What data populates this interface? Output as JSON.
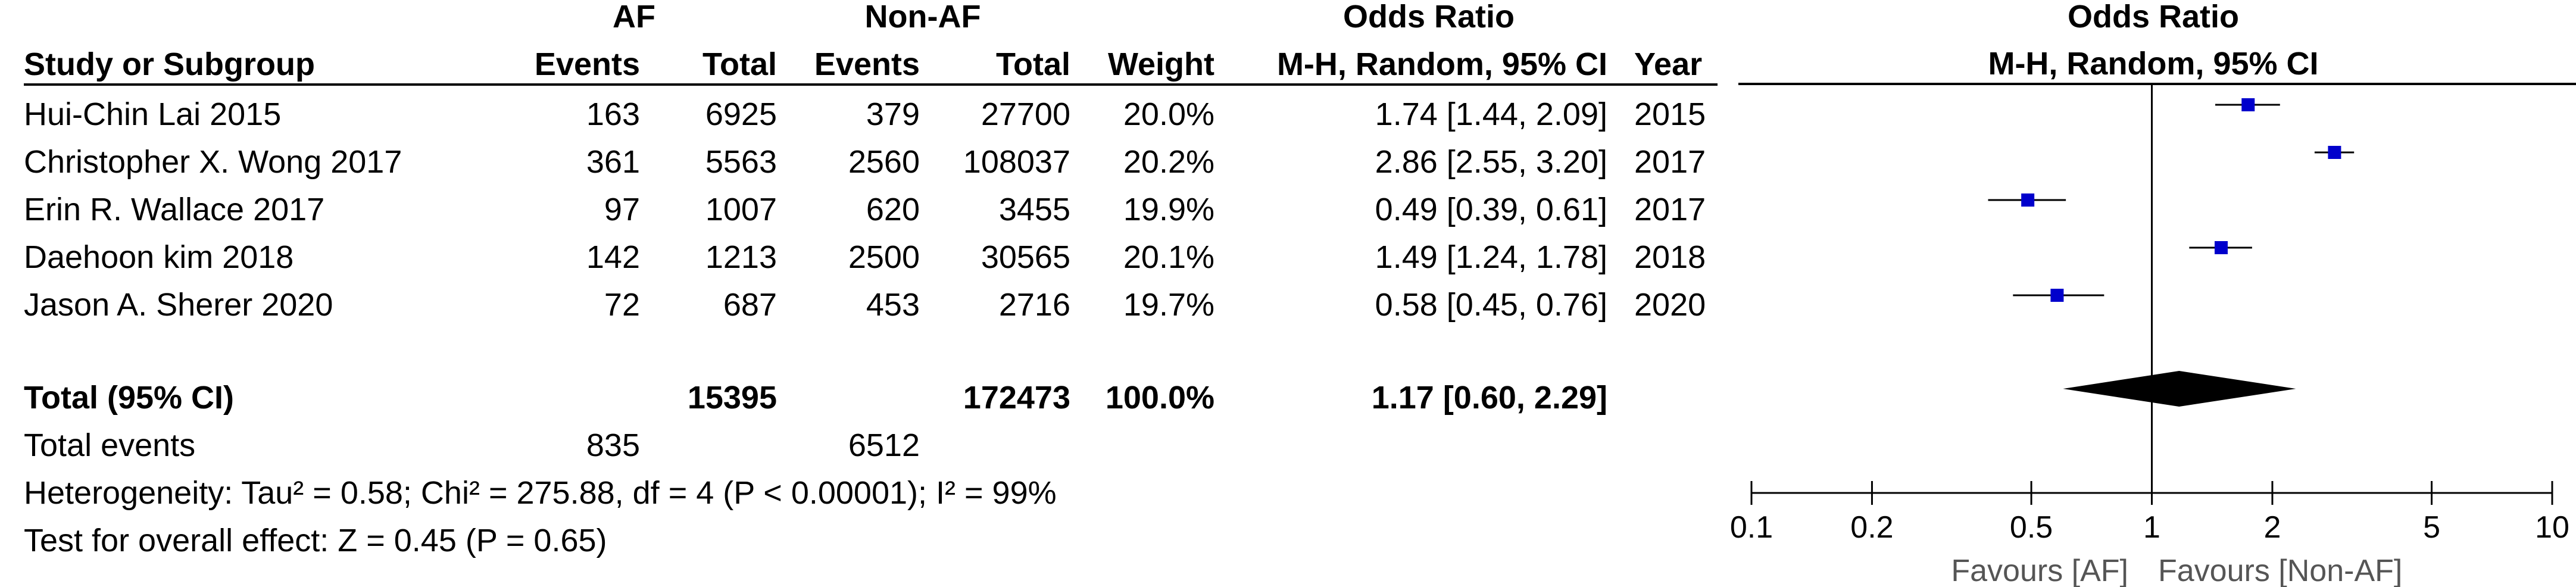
{
  "header": {
    "group1": "AF",
    "group2": "Non-AF",
    "or_group": "Odds Ratio",
    "plot_group": "Odds Ratio",
    "col_study": "Study or Subgroup",
    "col_events1": "Events",
    "col_total1": "Total",
    "col_events2": "Events",
    "col_total2": "Total",
    "col_weight": "Weight",
    "col_method": "M-H, Random, 95% CI",
    "col_year": "Year",
    "plot_method": "M-H, Random, 95% CI"
  },
  "rows": [
    {
      "study": "Hui-Chin Lai 2015",
      "ev1": "163",
      "tot1": "6925",
      "ev2": "379",
      "tot2": "27700",
      "weight": "20.0%",
      "ci": "1.74 [1.44, 2.09]",
      "year": "2015"
    },
    {
      "study": "Christopher X. Wong  2017",
      "ev1": "361",
      "tot1": "5563",
      "ev2": "2560",
      "tot2": "108037",
      "weight": "20.2%",
      "ci": "2.86 [2.55, 3.20]",
      "year": "2017"
    },
    {
      "study": "Erin R. Wallace 2017",
      "ev1": "97",
      "tot1": "1007",
      "ev2": "620",
      "tot2": "3455",
      "weight": "19.9%",
      "ci": "0.49 [0.39, 0.61]",
      "year": "2017"
    },
    {
      "study": "Daehoon kim  2018",
      "ev1": "142",
      "tot1": "1213",
      "ev2": "2500",
      "tot2": "30565",
      "weight": "20.1%",
      "ci": "1.49 [1.24, 1.78]",
      "year": "2018"
    },
    {
      "study": "Jason A. Sherer  2020",
      "ev1": "72",
      "tot1": "687",
      "ev2": "453",
      "tot2": "2716",
      "weight": "19.7%",
      "ci": "0.58 [0.45, 0.76]",
      "year": "2020"
    }
  ],
  "total": {
    "label": "Total (95% CI)",
    "tot1": "15395",
    "tot2": "172473",
    "weight": "100.0%",
    "ci": "1.17 [0.60, 2.29]"
  },
  "events": {
    "label": "Total events",
    "ev1": "835",
    "ev2": "6512"
  },
  "heterogeneity": "Heterogeneity: Tau² = 0.58; Chi² = 275.88, df = 4 (P < 0.00001); I² = 99%",
  "overall": "Test for overall effect: Z = 0.45 (P = 0.65)",
  "chart_data": {
    "type": "scatter",
    "title": "Odds Ratio",
    "subtitle": "M-H, Random, 95% CI",
    "xscale": "log",
    "xlim": [
      0.1,
      10
    ],
    "ticks": [
      "0.1",
      "0.2",
      "0.5",
      "1",
      "2",
      "5",
      "10"
    ],
    "tick_values": [
      0.1,
      0.2,
      0.5,
      1,
      2,
      5,
      10
    ],
    "favours_left": "Favours [AF]",
    "favours_right": "Favours [Non-AF]",
    "points": [
      {
        "or": 1.74,
        "lo": 1.44,
        "hi": 2.09
      },
      {
        "or": 2.86,
        "lo": 2.55,
        "hi": 3.2
      },
      {
        "or": 0.49,
        "lo": 0.39,
        "hi": 0.61
      },
      {
        "or": 1.49,
        "lo": 1.24,
        "hi": 1.78
      },
      {
        "or": 0.58,
        "lo": 0.45,
        "hi": 0.76
      }
    ],
    "pooled": {
      "or": 1.17,
      "lo": 0.6,
      "hi": 2.29
    },
    "colors": {
      "marker": "#0000cc",
      "line": "#000000",
      "diamond": "#000000"
    }
  }
}
